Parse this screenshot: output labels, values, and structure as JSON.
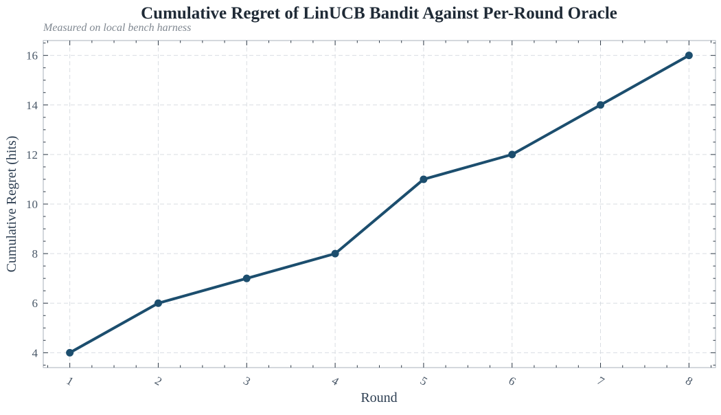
{
  "chart_data": {
    "type": "line",
    "title": "Cumulative Regret of LinUCB Bandit Against Per-Round Oracle",
    "subtitle": "Measured on local bench harness",
    "xlabel": "Round",
    "ylabel": "Cumulative Regret (hits)",
    "x": [
      1,
      2,
      3,
      4,
      5,
      6,
      7,
      8
    ],
    "series": [
      {
        "values": [
          4,
          6,
          7,
          8,
          11,
          12,
          14,
          16
        ],
        "color": "#1c4e6e"
      }
    ],
    "xlim": [
      0.7,
      8.3
    ],
    "ylim": [
      3.4,
      16.6
    ],
    "xticks": [
      1,
      2,
      3,
      4,
      5,
      6,
      7,
      8
    ],
    "yticks": [
      4,
      6,
      8,
      10,
      12,
      14,
      16
    ],
    "grid": true,
    "tick_label_rotation_x": 30
  }
}
